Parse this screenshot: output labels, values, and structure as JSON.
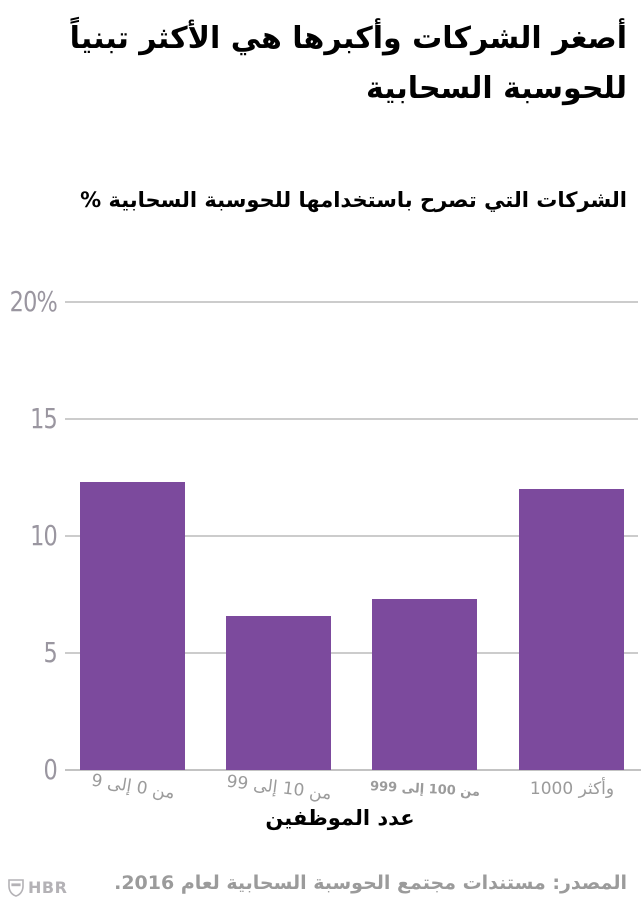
{
  "header": {
    "title_line1": "أصغر الشركات وأكبرها هي الأكثر تبنياً",
    "title_line2": "للحوسبة السحابية",
    "subtitle": "% الشركات التي تصرح باستخدامها للحوسبة السحابية"
  },
  "chart_data": {
    "type": "bar",
    "title": "أصغر الشركات وأكبرها هي الأكثر تبنياً للحوسبة السحابية",
    "subtitle": "% الشركات التي تصرح باستخدامها للحوسبة السحابية",
    "categories": [
      "من 0 إلى 9",
      "من 10 إلى 99",
      "من 100 إلى 999",
      "1000 وأكثر"
    ],
    "values": [
      12.3,
      6.6,
      7.3,
      12.0
    ],
    "xlabel": "عدد الموظفين",
    "ylabel": "% الشركات التي تصرح باستخدامها للحوسبة السحابية",
    "ylim": [
      0,
      20
    ],
    "y_ticks": [
      {
        "label": "20%",
        "value": 20
      },
      {
        "label": "15",
        "value": 15
      },
      {
        "label": "10",
        "value": 10
      },
      {
        "label": "5",
        "value": 5
      },
      {
        "label": "0",
        "value": 0
      }
    ],
    "grid": true,
    "legend": false,
    "bar_color": "#7c4a9d"
  },
  "footer": {
    "source": "المصدر: مستندات مجتمع الحوسبة السحابية لعام 2016.",
    "logo_text": "HBR"
  },
  "colors": {
    "bar": "#7c4a9d",
    "gridline": "#cccccc",
    "axis_line": "#c3c3c3",
    "y_tick_text": "#9a96a0",
    "x_tick_text": "#9b9b9b",
    "source_text": "#9b9b9b",
    "logo": "#b4b2b6",
    "title_text": "#000000"
  }
}
